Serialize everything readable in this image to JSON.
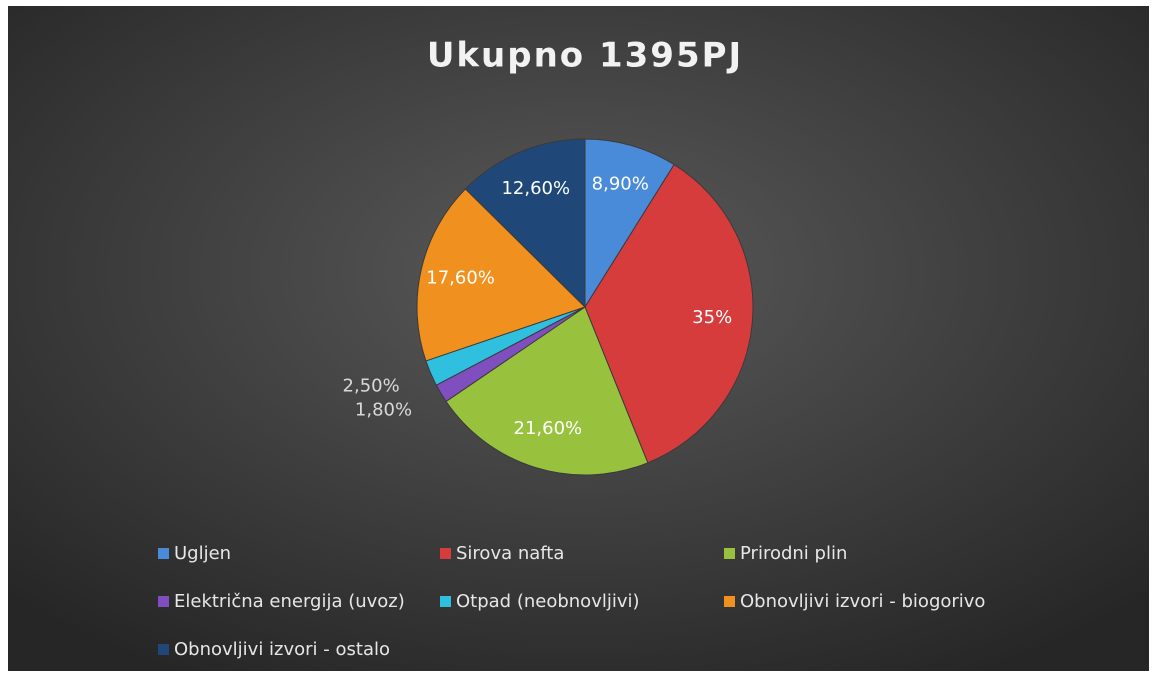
{
  "chart_data": {
    "type": "pie",
    "title": "Ukupno 1395PJ",
    "categories": [
      "Ugljen",
      "Sirova nafta",
      "Prirodni plin",
      "Električna energija (uvoz)",
      "Otpad (neobnovljivi)",
      "Obnovljivi izvori - biogorivo",
      "Obnovljivi izvori - ostalo"
    ],
    "values": [
      8.9,
      35,
      21.6,
      1.8,
      2.5,
      17.6,
      12.6
    ],
    "value_labels": [
      "8,90%",
      "35%",
      "21,60%",
      "1,80%",
      "2,50%",
      "17,60%",
      "12,60%"
    ],
    "colors": [
      "#4a8bd9",
      "#d63c3c",
      "#98c23e",
      "#7f4fc0",
      "#2fc0e0",
      "#f0901e",
      "#1f4878"
    ]
  }
}
